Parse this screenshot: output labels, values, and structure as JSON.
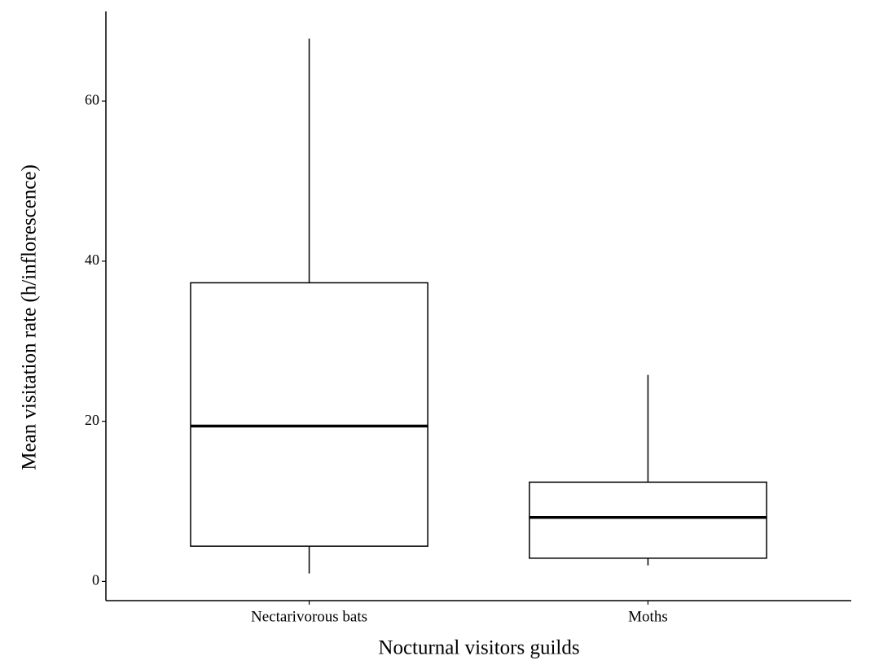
{
  "chart_data": {
    "type": "box",
    "x_label": "Nocturnal visitors guilds",
    "y_label": "Mean visitation rate (h/inflorescence)",
    "categories": [
      "Nectarivorous bats",
      "Moths"
    ],
    "min": [
      1,
      2
    ],
    "q1": [
      4.4,
      2.9
    ],
    "median": [
      19.4,
      8
    ],
    "q3": [
      37.3,
      12.4
    ],
    "max": [
      67.8,
      25.8
    ],
    "color": "#ffffff",
    "ylim": [
      -2.4,
      71.2
    ],
    "yticks": [
      0,
      20,
      40,
      60
    ],
    "grid": false
  }
}
